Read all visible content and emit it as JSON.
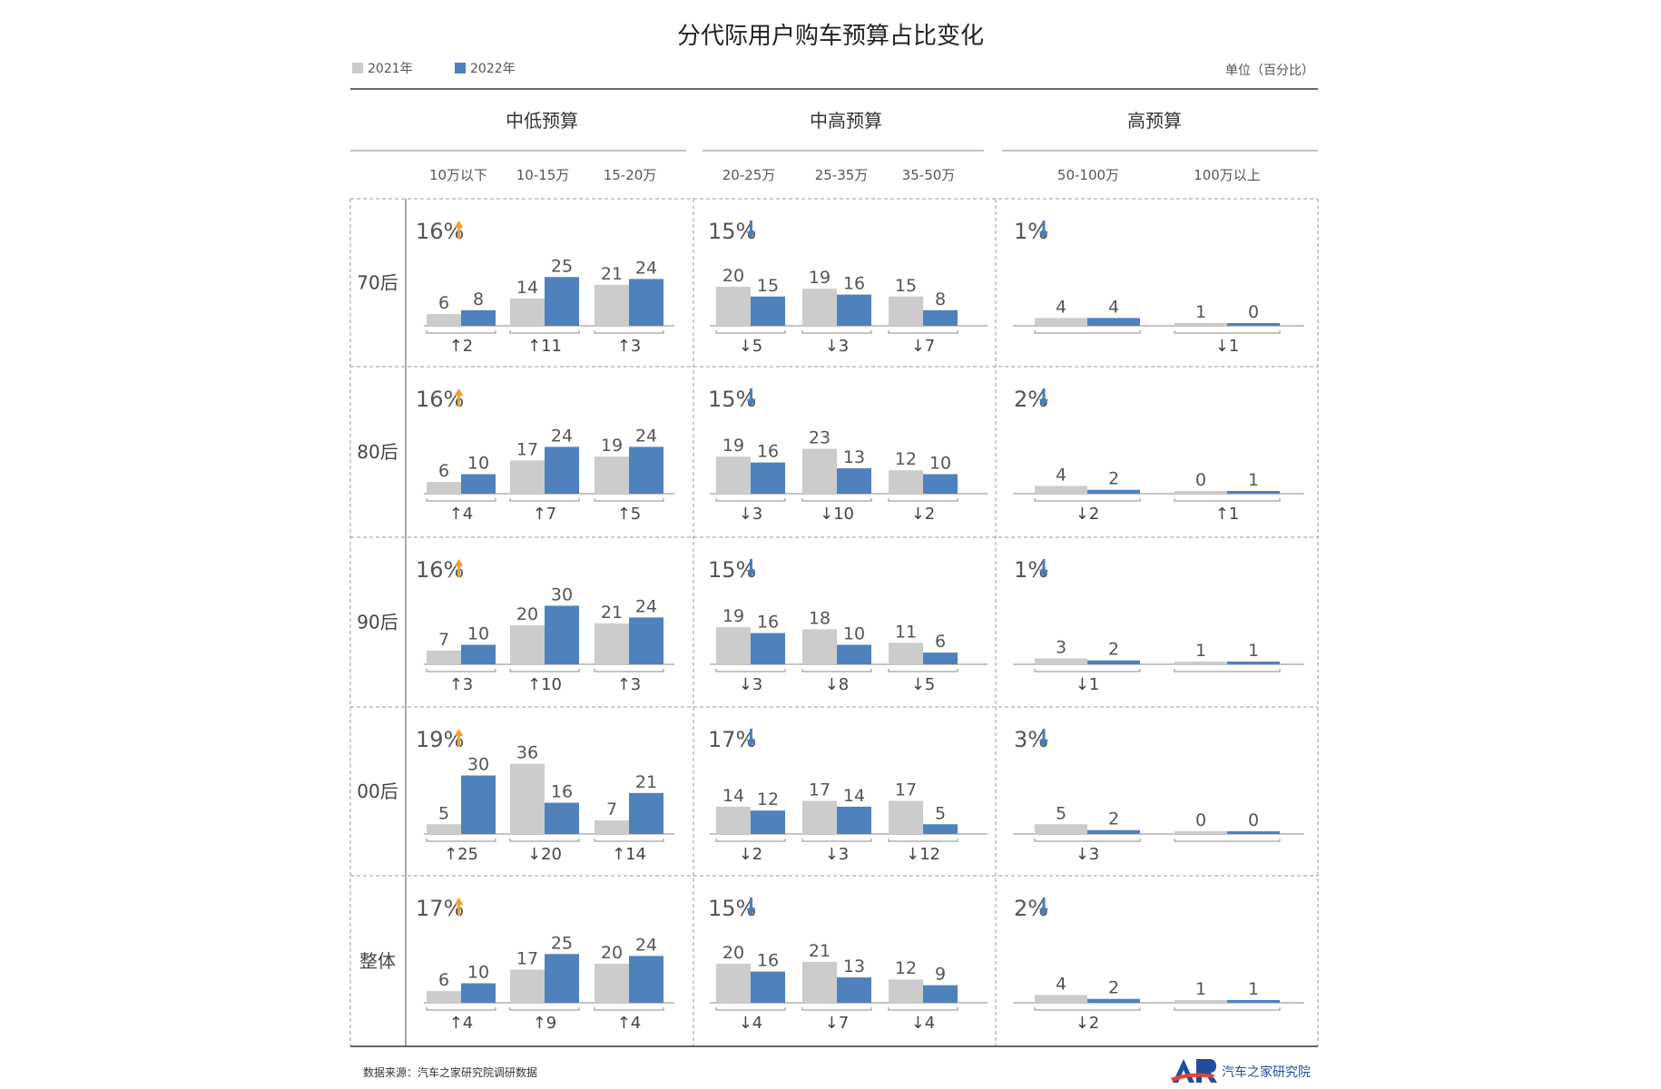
{
  "chart_data": {
    "type": "bar",
    "title": "分代际用户购车预算占比变化",
    "unit_label": "单位（百分比）",
    "source": "数据来源：汽车之家研究院调研数据",
    "logo_text": "汽车之家研究院",
    "legend": [
      {
        "name": "2021年",
        "color": "#cccccc"
      },
      {
        "name": "2022年",
        "color": "#4f81bd"
      }
    ],
    "colors": {
      "y2021": "#cccccc",
      "y2022": "#4f81bd",
      "up": "#f0a030",
      "down": "#4a7ebb",
      "text": "#555555"
    },
    "ymax": 36,
    "groups": [
      {
        "name": "中低预算",
        "categories": [
          "10万以下",
          "10-15万",
          "15-20万"
        ]
      },
      {
        "name": "中高预算",
        "categories": [
          "20-25万",
          "25-35万",
          "35-50万"
        ]
      },
      {
        "name": "高预算",
        "categories": [
          "50-100万",
          "100万以上"
        ]
      }
    ],
    "rows": [
      {
        "name": "70后",
        "group_summary": [
          {
            "text": "16%",
            "dir": "up"
          },
          {
            "text": "15%",
            "dir": "down"
          },
          {
            "text": "1%",
            "dir": "down"
          }
        ],
        "values_2021": [
          6,
          14,
          21,
          20,
          19,
          15,
          4,
          1
        ],
        "values_2022": [
          8,
          25,
          24,
          15,
          16,
          8,
          4,
          0
        ],
        "changes": [
          "↑2",
          "↑11",
          "↑3",
          "↓5",
          "↓3",
          "↓7",
          "",
          "↓1"
        ]
      },
      {
        "name": "80后",
        "group_summary": [
          {
            "text": "16%",
            "dir": "up"
          },
          {
            "text": "15%",
            "dir": "down"
          },
          {
            "text": "2%",
            "dir": "down"
          }
        ],
        "values_2021": [
          6,
          17,
          19,
          19,
          23,
          12,
          4,
          0
        ],
        "values_2022": [
          10,
          24,
          24,
          16,
          13,
          10,
          2,
          1
        ],
        "changes": [
          "↑4",
          "↑7",
          "↑5",
          "↓3",
          "↓10",
          "↓2",
          "↓2",
          "↑1"
        ]
      },
      {
        "name": "90后",
        "group_summary": [
          {
            "text": "16%",
            "dir": "up"
          },
          {
            "text": "15%",
            "dir": "down"
          },
          {
            "text": "1%",
            "dir": "down"
          }
        ],
        "values_2021": [
          7,
          20,
          21,
          19,
          18,
          11,
          3,
          1
        ],
        "values_2022": [
          10,
          30,
          24,
          16,
          10,
          6,
          2,
          1
        ],
        "changes": [
          "↑3",
          "↑10",
          "↑3",
          "↓3",
          "↓8",
          "↓5",
          "↓1",
          ""
        ]
      },
      {
        "name": "00后",
        "group_summary": [
          {
            "text": "19%",
            "dir": "up"
          },
          {
            "text": "17%",
            "dir": "down"
          },
          {
            "text": "3%",
            "dir": "down"
          }
        ],
        "values_2021": [
          5,
          36,
          7,
          14,
          17,
          17,
          5,
          0
        ],
        "values_2022": [
          30,
          16,
          21,
          12,
          14,
          5,
          2,
          0
        ],
        "changes": [
          "↑25",
          "↓20",
          "↑14",
          "↓2",
          "↓3",
          "↓12",
          "↓3",
          ""
        ]
      },
      {
        "name": "整体",
        "group_summary": [
          {
            "text": "17%",
            "dir": "up"
          },
          {
            "text": "15%",
            "dir": "down"
          },
          {
            "text": "2%",
            "dir": "down"
          }
        ],
        "values_2021": [
          6,
          17,
          20,
          20,
          21,
          12,
          4,
          1
        ],
        "values_2022": [
          10,
          25,
          24,
          16,
          13,
          9,
          2,
          1
        ],
        "changes": [
          "↑4",
          "↑9",
          "↑4",
          "↓4",
          "↓7",
          "↓4",
          "↓2",
          ""
        ]
      }
    ]
  }
}
